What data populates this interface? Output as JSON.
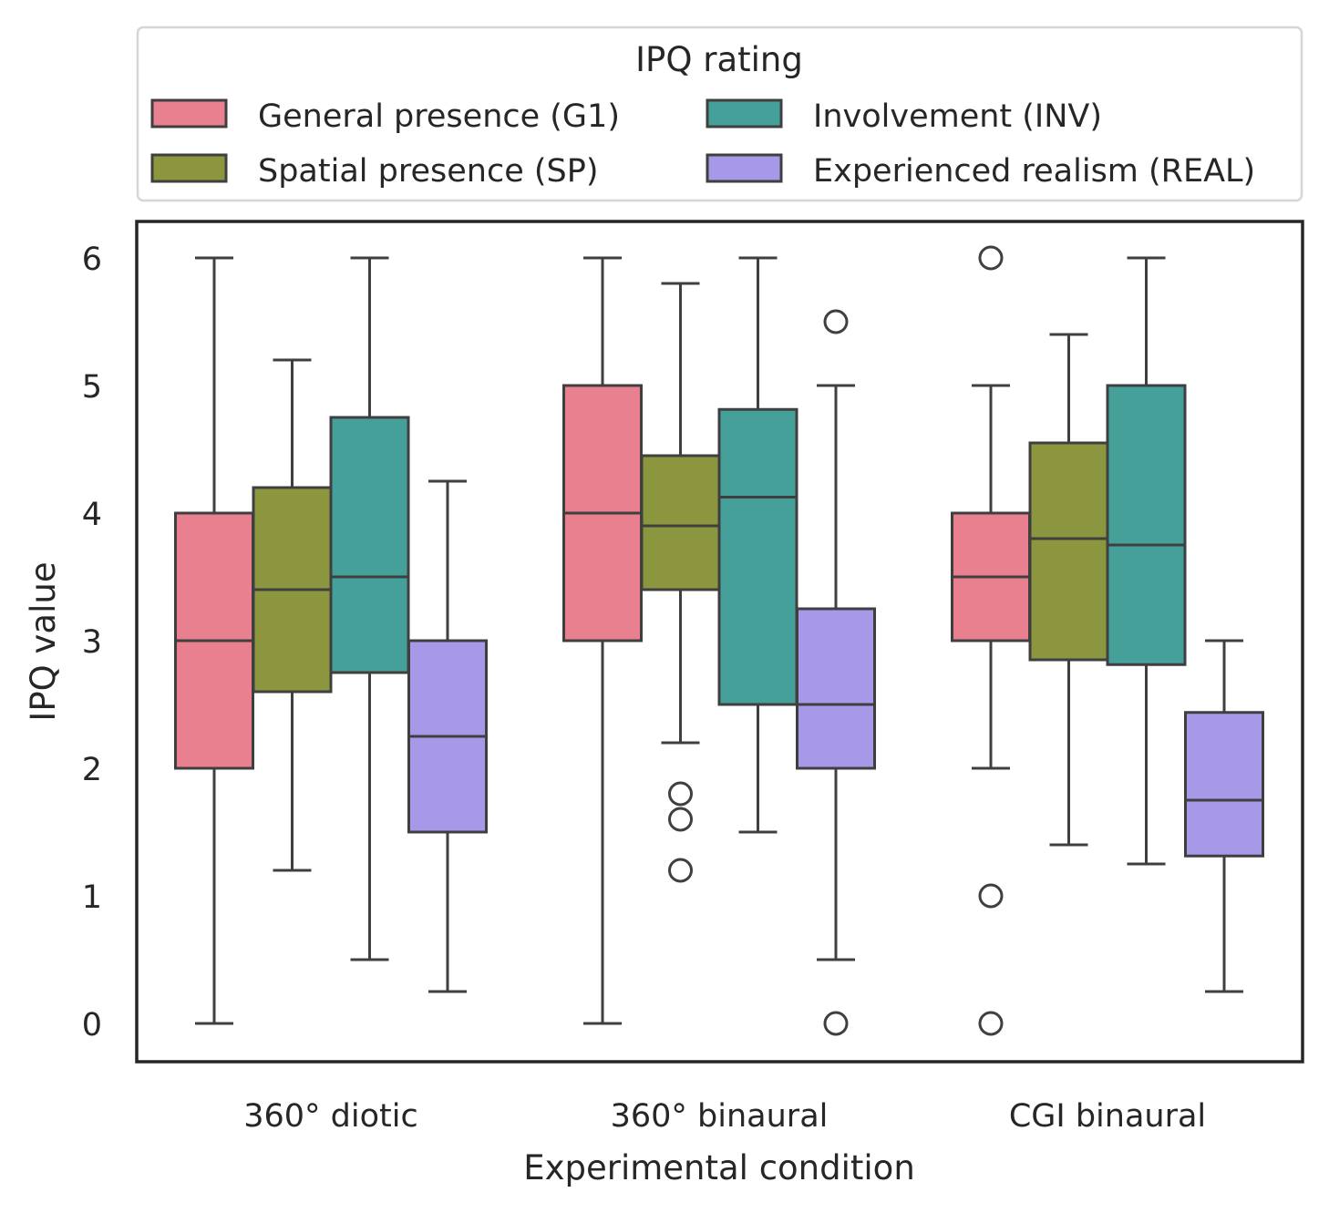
{
  "chart_data": {
    "type": "box",
    "title": "",
    "xlabel": "Experimental condition",
    "ylabel": "IPQ value",
    "ylim": [
      -0.3,
      6.3
    ],
    "yticks": [
      0,
      1,
      2,
      3,
      4,
      5,
      6
    ],
    "grid": false,
    "categories": [
      "360° diotic",
      "360° binaural",
      "CGI binaural"
    ],
    "legend": {
      "title": "IPQ rating",
      "placement": "top",
      "columns": 2
    },
    "series": [
      {
        "name": "General presence (G1)",
        "color": "#e8808f",
        "boxes": [
          {
            "whisker_low": 0,
            "q1": 2,
            "median": 3,
            "q3": 4,
            "whisker_high": 6,
            "outliers": []
          },
          {
            "whisker_low": 0,
            "q1": 3,
            "median": 4,
            "q3": 5,
            "whisker_high": 6,
            "outliers": []
          },
          {
            "whisker_low": 2,
            "q1": 3,
            "median": 3.5,
            "q3": 4,
            "whisker_high": 5,
            "outliers": [
              6,
              1,
              0
            ]
          }
        ]
      },
      {
        "name": "Spatial presence (SP)",
        "color": "#8b963f",
        "boxes": [
          {
            "whisker_low": 1.2,
            "q1": 2.6,
            "median": 3.4,
            "q3": 4.2,
            "whisker_high": 5.2,
            "outliers": []
          },
          {
            "whisker_low": 2.2,
            "q1": 3.4,
            "median": 3.9,
            "q3": 4.45,
            "whisker_high": 5.8,
            "outliers": [
              1.8,
              1.6,
              1.2
            ]
          },
          {
            "whisker_low": 1.4,
            "q1": 2.85,
            "median": 3.8,
            "q3": 4.55,
            "whisker_high": 5.4,
            "outliers": []
          }
        ]
      },
      {
        "name": "Involvement (INV)",
        "color": "#45a09a",
        "boxes": [
          {
            "whisker_low": 0.5,
            "q1": 2.75,
            "median": 3.5,
            "q3": 4.75,
            "whisker_high": 6,
            "outliers": []
          },
          {
            "whisker_low": 1.5,
            "q1": 2.5,
            "median": 4.125,
            "q3": 4.8125,
            "whisker_high": 6,
            "outliers": []
          },
          {
            "whisker_low": 1.25,
            "q1": 2.8125,
            "median": 3.75,
            "q3": 5,
            "whisker_high": 6,
            "outliers": []
          }
        ]
      },
      {
        "name": "Experienced realism (REAL)",
        "color": "#a898e8",
        "boxes": [
          {
            "whisker_low": 0.25,
            "q1": 1.5,
            "median": 2.25,
            "q3": 3,
            "whisker_high": 4.25,
            "outliers": []
          },
          {
            "whisker_low": 0.5,
            "q1": 2,
            "median": 2.5,
            "q3": 3.25,
            "whisker_high": 5,
            "outliers": [
              5.5,
              0
            ]
          },
          {
            "whisker_low": 0.25,
            "q1": 1.3125,
            "median": 1.75,
            "q3": 2.4375,
            "whisker_high": 3,
            "outliers": []
          }
        ]
      }
    ]
  }
}
